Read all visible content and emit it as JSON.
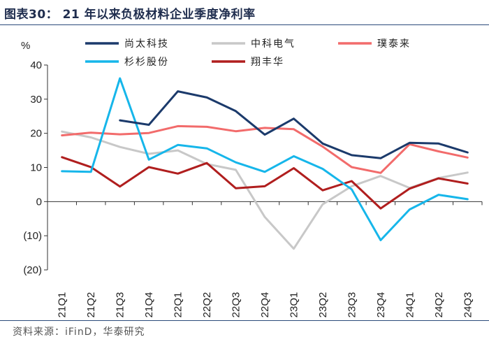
{
  "title": "图表30：  21 年以来负极材料企业季度净利率",
  "source": "资料来源：iFinD，华泰研究",
  "chart_data": {
    "type": "line",
    "unit_label": "%",
    "categories": [
      "21Q1",
      "21Q2",
      "21Q3",
      "21Q4",
      "22Q1",
      "22Q2",
      "22Q3",
      "22Q4",
      "23Q1",
      "23Q2",
      "23Q3",
      "23Q4",
      "24Q1",
      "24Q2",
      "24Q3"
    ],
    "y_ticks": [
      "40",
      "30",
      "20",
      "10",
      "0",
      "(10)",
      "(20)"
    ],
    "ylim": [
      -20,
      40
    ],
    "series": [
      {
        "name": "尚太科技",
        "color": "#1b3a6b",
        "values": [
          null,
          null,
          23.8,
          22.5,
          32.3,
          30.5,
          26.5,
          19.6,
          24.3,
          17.0,
          13.6,
          12.7,
          17.2,
          17.0,
          14.4
        ]
      },
      {
        "name": "中科电气",
        "color": "#c8c8c8",
        "values": [
          20.5,
          18.8,
          16.0,
          14.0,
          15.0,
          11.0,
          9.3,
          -4.5,
          -13.8,
          -0.8,
          4.5,
          7.5,
          4.0,
          6.9,
          8.5
        ]
      },
      {
        "name": "璞泰来",
        "color": "#f26b6b",
        "values": [
          19.4,
          20.2,
          19.7,
          20.1,
          22.1,
          21.9,
          20.6,
          21.6,
          21.2,
          16.1,
          10.1,
          8.4,
          16.8,
          14.7,
          12.9
        ]
      },
      {
        "name": "杉杉股份",
        "color": "#16b6ea",
        "values": [
          8.9,
          8.7,
          36.1,
          12.3,
          16.6,
          15.6,
          11.5,
          8.7,
          13.3,
          9.6,
          3.6,
          -11.3,
          -2.3,
          2.0,
          0.7
        ]
      },
      {
        "name": "翔丰华",
        "color": "#b01e1e",
        "values": [
          13.0,
          10.1,
          4.4,
          10.1,
          8.2,
          11.3,
          3.9,
          4.5,
          9.8,
          3.3,
          6.0,
          -2.0,
          3.8,
          6.8,
          5.3
        ]
      }
    ],
    "legend_position": "top"
  }
}
